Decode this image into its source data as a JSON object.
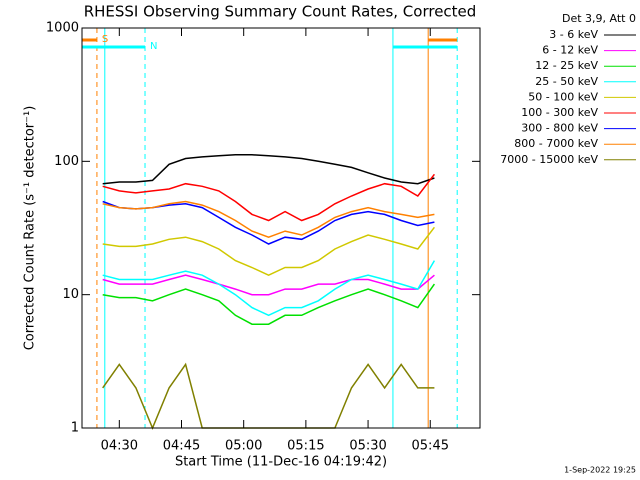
{
  "chart_data": {
    "type": "line",
    "title": "RHESSI Observing Summary Count Rates, Corrected",
    "x_label": "Start Time (11-Dec-16 04:19:42)",
    "y_label": "Corrected Count Rate (s⁻¹ detector⁻¹)",
    "legend_title": "Det 3,9, Att 0",
    "footer": "1-Sep-2022 19:25",
    "ylog": true,
    "xlim": [
      261,
      357
    ],
    "ylim": [
      1,
      1000
    ],
    "xticks": [
      {
        "value": 270,
        "label": "04:30"
      },
      {
        "value": 285,
        "label": "04:45"
      },
      {
        "value": 300,
        "label": "05:00"
      },
      {
        "value": 315,
        "label": "05:15"
      },
      {
        "value": 330,
        "label": "05:30"
      },
      {
        "value": 345,
        "label": "05:45"
      }
    ],
    "yticks": [
      1,
      10,
      100,
      1000
    ],
    "x": [
      266,
      270,
      274,
      278,
      282,
      286,
      290,
      294,
      298,
      302,
      306,
      310,
      314,
      318,
      322,
      326,
      330,
      334,
      338,
      342,
      346
    ],
    "series": [
      {
        "name": "3 - 6 keV",
        "color": "#000000",
        "values": [
          68,
          70,
          70,
          72,
          95,
          105,
          108,
          110,
          112,
          112,
          110,
          108,
          105,
          100,
          95,
          90,
          82,
          75,
          70,
          68,
          75
        ]
      },
      {
        "name": "6 - 12 keV",
        "color": "#ff00ff",
        "values": [
          13,
          12,
          12,
          12,
          13,
          14,
          13,
          12,
          11,
          10,
          10,
          11,
          11,
          12,
          12,
          13,
          13,
          12,
          11,
          11,
          14
        ]
      },
      {
        "name": "12 - 25 keV",
        "color": "#00e000",
        "values": [
          10,
          9.5,
          9.5,
          9,
          10,
          11,
          10,
          9,
          7,
          6,
          6,
          7,
          7,
          8,
          9,
          10,
          11,
          10,
          9,
          8,
          12
        ]
      },
      {
        "name": "25 - 50 keV",
        "color": "#00ffff",
        "values": [
          14,
          13,
          13,
          13,
          14,
          15,
          14,
          12,
          10,
          8,
          7,
          8,
          8,
          9,
          11,
          13,
          14,
          13,
          12,
          11,
          18
        ]
      },
      {
        "name": "50 - 100 keV",
        "color": "#d0c800",
        "values": [
          24,
          23,
          23,
          24,
          26,
          27,
          25,
          22,
          18,
          16,
          14,
          16,
          16,
          18,
          22,
          25,
          28,
          26,
          24,
          22,
          32
        ]
      },
      {
        "name": "100 - 300 keV",
        "color": "#ff0000",
        "values": [
          65,
          60,
          58,
          60,
          62,
          68,
          65,
          60,
          50,
          40,
          36,
          42,
          36,
          40,
          48,
          55,
          62,
          68,
          65,
          55,
          80
        ]
      },
      {
        "name": "300 - 800 keV",
        "color": "#0000ff",
        "values": [
          50,
          45,
          44,
          45,
          47,
          48,
          45,
          38,
          32,
          28,
          24,
          27,
          26,
          30,
          36,
          40,
          42,
          40,
          36,
          33,
          35
        ]
      },
      {
        "name": "800 - 7000 keV",
        "color": "#ff8000",
        "values": [
          48,
          45,
          44,
          45,
          48,
          50,
          47,
          42,
          36,
          30,
          27,
          30,
          28,
          32,
          38,
          42,
          45,
          42,
          40,
          38,
          40
        ]
      },
      {
        "name": "7000 - 15000 keV",
        "color": "#808000",
        "values": [
          2,
          3,
          2,
          1,
          2,
          3,
          1,
          1,
          1,
          1,
          1,
          1,
          1,
          1,
          1,
          2,
          3,
          2,
          3,
          2,
          2
        ]
      }
    ],
    "vlines": [
      {
        "x": 264.6,
        "color": "#ff8000",
        "dashed": true
      },
      {
        "x": 266.5,
        "color": "#00ffff",
        "dashed": false
      },
      {
        "x": 276.2,
        "color": "#00ffff",
        "dashed": true
      },
      {
        "x": 336.0,
        "color": "#00ffff",
        "dashed": false
      },
      {
        "x": 344.5,
        "color": "#ff8000",
        "dashed": false
      },
      {
        "x": 351.5,
        "color": "#00ffff",
        "dashed": true
      }
    ],
    "spans": [
      {
        "label": "S",
        "x0": 261,
        "x1": 264.6,
        "color": "#ff8000"
      },
      {
        "label": "N",
        "x0": 261,
        "x1": 276.2,
        "color": "#00ffff"
      },
      {
        "x0": 336.0,
        "x1": 351.5,
        "color": "#00ffff"
      },
      {
        "x0": 344.5,
        "x1": 351.5,
        "color": "#ff8000"
      }
    ]
  }
}
